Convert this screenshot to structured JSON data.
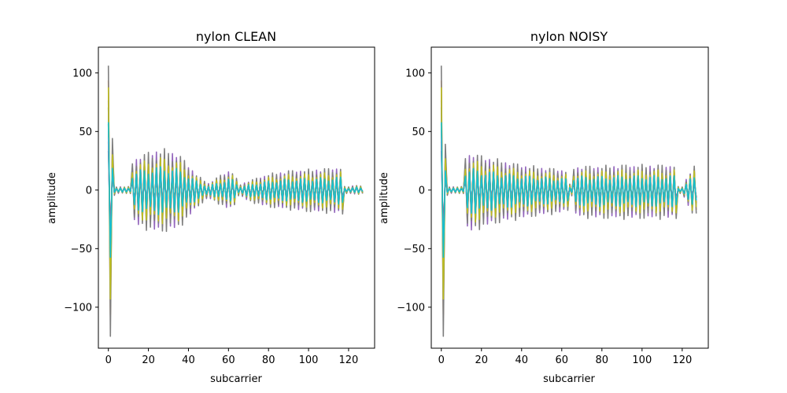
{
  "chart_data": [
    {
      "type": "line",
      "title": "nylon CLEAN",
      "xlabel": "subcarrier",
      "ylabel": "amplitude",
      "xlim": [
        -5,
        133
      ],
      "ylim": [
        -135,
        122
      ],
      "xticks": [
        0,
        20,
        40,
        60,
        80,
        100,
        120
      ],
      "yticks": [
        -100,
        -50,
        0,
        50,
        100
      ],
      "x_range": [
        0,
        127
      ],
      "colors": [
        "#1f77b4",
        "#ff7f0e",
        "#2ca02c",
        "#d62728",
        "#9467bd",
        "#8c564b",
        "#e377c2",
        "#7f7f7f",
        "#bcbd22",
        "#17becf"
      ],
      "series_count": 10,
      "envelope_profile": {
        "note_values_in_data_units": true,
        "x": [
          0,
          1,
          2,
          3,
          4,
          5,
          10,
          11,
          12,
          15,
          20,
          25,
          30,
          35,
          40,
          45,
          50,
          55,
          60,
          62,
          64,
          65,
          66,
          70,
          80,
          90,
          100,
          110,
          115,
          117,
          118,
          120,
          125,
          127
        ],
        "max": [
          112,
          112,
          45,
          5,
          3,
          3,
          3,
          3,
          25,
          30,
          33,
          36,
          35,
          32,
          22,
          12,
          6,
          12,
          17,
          16,
          10,
          5,
          5,
          8,
          14,
          17,
          18,
          19,
          20,
          20,
          3,
          3,
          5,
          2
        ],
        "min": [
          -125,
          -125,
          -45,
          -5,
          -3,
          -3,
          -3,
          -3,
          -28,
          -32,
          -35,
          -37,
          -36,
          -34,
          -24,
          -14,
          -7,
          -12,
          -17,
          -16,
          -10,
          -5,
          -5,
          -10,
          -15,
          -17,
          -19,
          -20,
          -21,
          -21,
          -3,
          -3,
          -4,
          -3
        ]
      }
    },
    {
      "type": "line",
      "title": "nylon NOISY",
      "xlabel": "subcarrier",
      "ylabel": "amplitude",
      "xlim": [
        -5,
        133
      ],
      "ylim": [
        -135,
        122
      ],
      "xticks": [
        0,
        20,
        40,
        60,
        80,
        100,
        120
      ],
      "yticks": [
        -100,
        -50,
        0,
        50,
        100
      ],
      "x_range": [
        0,
        127
      ],
      "colors": [
        "#1f77b4",
        "#ff7f0e",
        "#2ca02c",
        "#d62728",
        "#9467bd",
        "#8c564b",
        "#e377c2",
        "#7f7f7f",
        "#bcbd22",
        "#17becf"
      ],
      "series_count": 10,
      "envelope_profile": {
        "note_values_in_data_units": true,
        "x": [
          0,
          1,
          2,
          3,
          4,
          5,
          10,
          11,
          12,
          15,
          20,
          30,
          40,
          50,
          60,
          63,
          64,
          65,
          66,
          70,
          80,
          90,
          100,
          110,
          115,
          117,
          118,
          120,
          125,
          127
        ],
        "max": [
          112,
          112,
          40,
          5,
          3,
          3,
          3,
          3,
          30,
          33,
          30,
          26,
          22,
          20,
          18,
          17,
          5,
          5,
          20,
          21,
          21,
          22,
          22,
          22,
          22,
          22,
          3,
          3,
          20,
          22
        ],
        "min": [
          -125,
          -125,
          -40,
          -5,
          -20,
          -3,
          -3,
          -3,
          -35,
          -37,
          -33,
          -28,
          -25,
          -22,
          -20,
          -18,
          -5,
          -5,
          -22,
          -24,
          -25,
          -25,
          -25,
          -25,
          -25,
          -25,
          -3,
          -3,
          -22,
          -20
        ]
      }
    }
  ]
}
